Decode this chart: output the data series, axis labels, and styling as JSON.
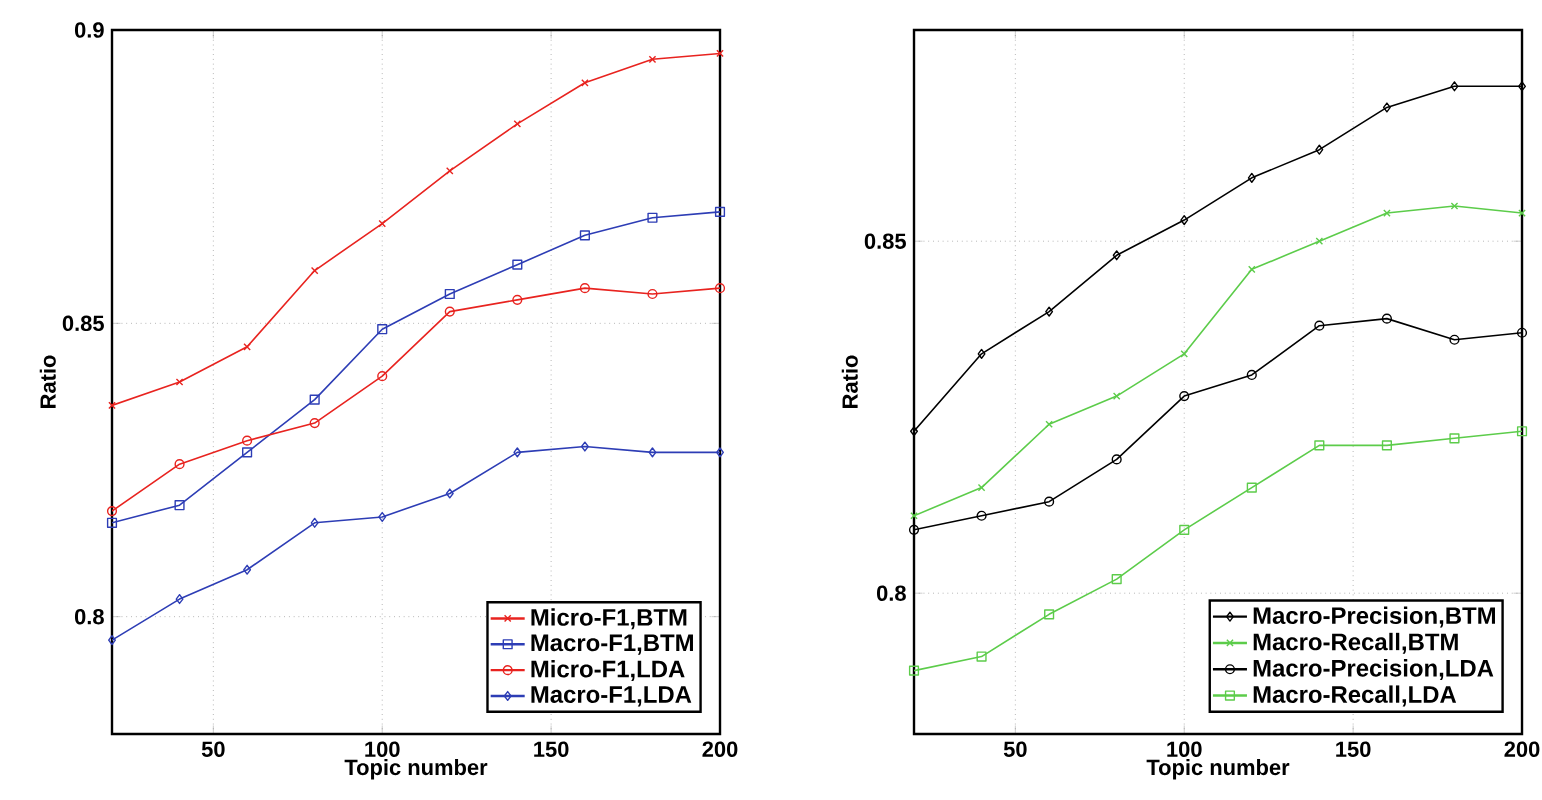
{
  "chart_data": [
    {
      "type": "line",
      "xlabel": "Topic number",
      "ylabel": "Ratio",
      "x": [
        20,
        40,
        60,
        80,
        100,
        120,
        140,
        160,
        180,
        200
      ],
      "xlim": [
        20,
        200
      ],
      "ylim": [
        0.78,
        0.9
      ],
      "xticks": [
        50,
        100,
        150,
        200
      ],
      "yticks": [
        0.8,
        0.85,
        0.9
      ],
      "grid": true,
      "legend": "bottom right",
      "line_style": "solid",
      "series": [
        {
          "name": "Micro-F1,BTM",
          "color": "#e8231f",
          "marker": "cross",
          "values": [
            0.836,
            0.84,
            0.846,
            0.859,
            0.867,
            0.876,
            0.884,
            0.891,
            0.895,
            0.896
          ]
        },
        {
          "name": "Macro-F1,BTM",
          "color": "#2d3db5",
          "marker": "square",
          "values": [
            0.816,
            0.819,
            0.828,
            0.837,
            0.849,
            0.855,
            0.86,
            0.865,
            0.868,
            0.869
          ]
        },
        {
          "name": "Micro-F1,LDA",
          "color": "#e8231f",
          "marker": "circle",
          "values": [
            0.818,
            0.826,
            0.83,
            0.833,
            0.841,
            0.852,
            0.854,
            0.856,
            0.855,
            0.856
          ]
        },
        {
          "name": "Macro-F1,LDA",
          "color": "#2d3db5",
          "marker": "diamond",
          "values": [
            0.796,
            0.803,
            0.808,
            0.816,
            0.817,
            0.821,
            0.828,
            0.829,
            0.828,
            0.828
          ]
        }
      ]
    },
    {
      "type": "line",
      "xlabel": "Topic number",
      "ylabel": "Ratio",
      "x": [
        20,
        40,
        60,
        80,
        100,
        120,
        140,
        160,
        180,
        200
      ],
      "xlim": [
        20,
        200
      ],
      "ylim": [
        0.78,
        0.88
      ],
      "xticks": [
        50,
        100,
        150,
        200
      ],
      "yticks": [
        0.8,
        0.85
      ],
      "grid": true,
      "legend": "bottom right",
      "line_style": "solid",
      "series": [
        {
          "name": "Macro-Precision,BTM",
          "color": "#000000",
          "marker": "diamond",
          "values": [
            0.823,
            0.834,
            0.84,
            0.848,
            0.853,
            0.859,
            0.863,
            0.869,
            0.872,
            0.872
          ]
        },
        {
          "name": "Macro-Recall,BTM",
          "color": "#5ccc4a",
          "marker": "cross",
          "values": [
            0.811,
            0.815,
            0.824,
            0.828,
            0.834,
            0.846,
            0.85,
            0.854,
            0.855,
            0.854
          ]
        },
        {
          "name": "Macro-Precision,LDA",
          "color": "#000000",
          "marker": "circle",
          "values": [
            0.809,
            0.811,
            0.813,
            0.819,
            0.828,
            0.831,
            0.838,
            0.839,
            0.836,
            0.837
          ]
        },
        {
          "name": "Macro-Recall,LDA",
          "color": "#5ccc4a",
          "marker": "square",
          "values": [
            0.789,
            0.791,
            0.797,
            0.802,
            0.809,
            0.815,
            0.821,
            0.821,
            0.822,
            0.823
          ]
        }
      ]
    }
  ]
}
